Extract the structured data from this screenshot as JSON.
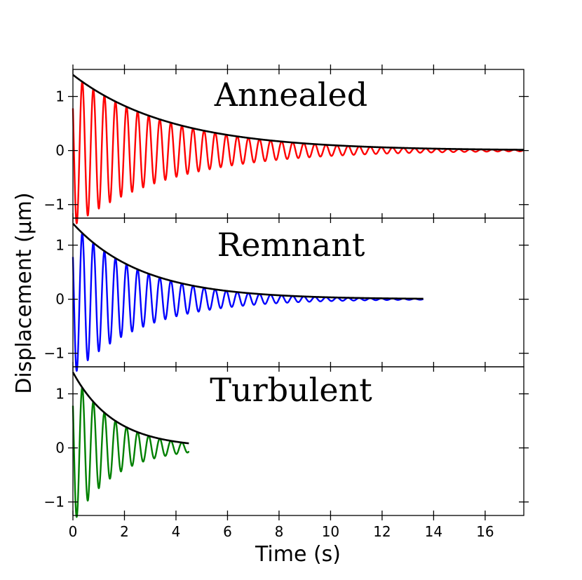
{
  "chart_data": {
    "type": "line",
    "xlabel": "Time (s)",
    "ylabel": "Displacement (μm)",
    "xlim": [
      0,
      17.5
    ],
    "xticks": [
      0,
      2,
      4,
      6,
      8,
      10,
      12,
      14,
      16
    ],
    "ylim": [
      -1.25,
      1.5
    ],
    "yticks": [
      -1,
      0,
      1
    ],
    "ytick_labels": [
      "−1",
      "0",
      "1"
    ],
    "legend": "none",
    "grid": false,
    "panels": [
      {
        "title": "Annealed",
        "color": "#ff0000",
        "t_end": 17.5,
        "period": 0.43,
        "initial_amplitude": 1.4,
        "decay_time": 3.8,
        "envelope_color": "#000000"
      },
      {
        "title": "Remnant",
        "color": "#0000ff",
        "t_end": 13.6,
        "period": 0.43,
        "initial_amplitude": 1.4,
        "decay_time": 2.7,
        "envelope_color": "#000000"
      },
      {
        "title": "Turbulent",
        "color": "#008000",
        "t_end": 4.5,
        "period": 0.43,
        "initial_amplitude": 1.4,
        "decay_time": 1.6,
        "envelope_color": "#000000"
      }
    ]
  }
}
